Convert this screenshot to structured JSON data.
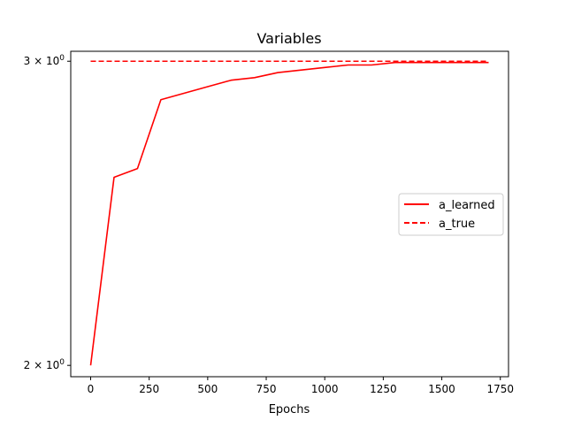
{
  "chart_data": {
    "type": "line",
    "title": "Variables",
    "xlabel": "Epochs",
    "ylabel": "",
    "yscale": "log",
    "xlim": [
      -85,
      1785
    ],
    "ylim": [
      1.97,
      3.04
    ],
    "xticks": [
      0,
      250,
      500,
      750,
      1000,
      1250,
      1500,
      1750
    ],
    "xtick_labels": [
      "0",
      "250",
      "500",
      "750",
      "1000",
      "1250",
      "1500",
      "1750"
    ],
    "yticks": [
      {
        "value": 2,
        "base": "2 × 10",
        "exp": "0"
      },
      {
        "value": 3,
        "base": "3 × 10",
        "exp": "0"
      }
    ],
    "grid": false,
    "legend_position": "center-right",
    "series": [
      {
        "name": "a_learned",
        "color": "#ff0000",
        "dash": "solid",
        "x": [
          0,
          100,
          200,
          300,
          400,
          500,
          600,
          700,
          800,
          900,
          1000,
          1100,
          1200,
          1300,
          1400,
          1500,
          1600,
          1700
        ],
        "y": [
          2.0,
          2.57,
          2.6,
          2.85,
          2.875,
          2.9,
          2.925,
          2.935,
          2.955,
          2.965,
          2.975,
          2.985,
          2.985,
          2.995,
          2.995,
          2.995,
          2.995,
          2.995
        ]
      },
      {
        "name": "a_true",
        "color": "#ff0000",
        "dash": "dashed",
        "x": [
          0,
          1700
        ],
        "y": [
          3.0,
          3.0
        ]
      }
    ]
  }
}
